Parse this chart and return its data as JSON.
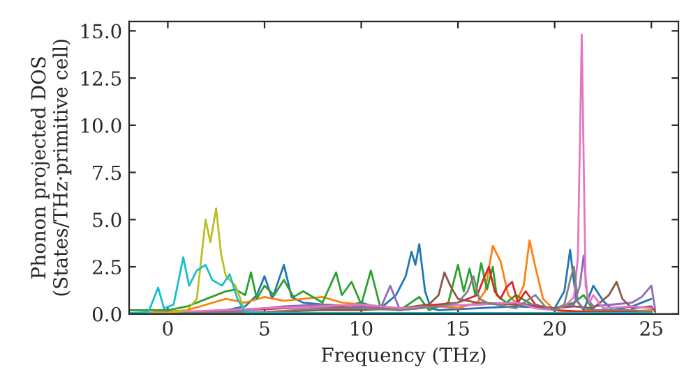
{
  "chart_data": {
    "type": "line",
    "xlabel": "Frequency (THz)",
    "ylabel": "Phonon projected DOS\n(States/THz·primitive cell)",
    "xlim": [
      -2,
      26.4
    ],
    "ylim": [
      0,
      15.5
    ],
    "xticks": [
      0,
      5,
      10,
      15,
      20,
      25
    ],
    "yticks": [
      {
        "value": 0,
        "label": "0.0"
      },
      {
        "value": 2.5,
        "label": "2.5"
      },
      {
        "value": 5,
        "label": "5.0"
      },
      {
        "value": 7.5,
        "label": "7.5"
      },
      {
        "value": 10,
        "label": "10.0"
      },
      {
        "value": 12.5,
        "label": "12.5"
      },
      {
        "value": 15,
        "label": "15.0"
      }
    ],
    "grid": false,
    "marker": "none",
    "line_style": "solid",
    "series": [
      {
        "color": "#1f77b4",
        "x": [
          -2,
          2,
          3,
          4,
          4.6,
          5,
          5.4,
          6,
          6.4,
          7,
          8,
          9,
          10,
          11,
          11.8,
          12.3,
          12.6,
          12.8,
          13,
          13.3,
          13.6,
          14,
          16,
          18,
          20,
          20.5,
          20.8,
          21.1,
          21.5,
          22,
          22.5,
          23,
          24,
          25
        ],
        "values": [
          0,
          0.1,
          0.2,
          0.4,
          1.0,
          2.0,
          0.8,
          2.6,
          0.9,
          0.6,
          0.5,
          0.4,
          0.6,
          0.3,
          1.0,
          2.0,
          3.3,
          2.6,
          3.7,
          1.2,
          0.3,
          0.2,
          0.3,
          0.4,
          0.3,
          1.2,
          3.4,
          0.8,
          0.2,
          1.5,
          0.7,
          0.2,
          0.4,
          0.8
        ]
      },
      {
        "color": "#ff7f0e",
        "x": [
          -2,
          1,
          2,
          3,
          4,
          5,
          6,
          7,
          8,
          9,
          10,
          12,
          14,
          15,
          16,
          16.4,
          16.8,
          17.2,
          17.6,
          18,
          18.4,
          18.7,
          19,
          19.4,
          20,
          21,
          22,
          23,
          25
        ],
        "values": [
          0,
          0.2,
          0.5,
          0.8,
          0.6,
          0.9,
          0.7,
          0.8,
          0.9,
          0.6,
          0.5,
          0.3,
          0.4,
          0.3,
          0.6,
          1.2,
          3.6,
          2.8,
          1.0,
          0.6,
          1.5,
          3.9,
          2.5,
          0.8,
          0.2,
          0.1,
          0.2,
          0.1,
          0.2
        ]
      },
      {
        "color": "#2ca02c",
        "x": [
          -2,
          -1,
          0,
          1,
          2,
          3,
          3.5,
          4,
          4.3,
          4.6,
          5,
          5.5,
          6,
          6.5,
          7,
          8,
          8.7,
          9,
          9.5,
          10,
          10.5,
          11,
          12,
          13,
          13.5,
          14,
          14.5,
          15,
          15.3,
          15.6,
          15.9,
          16.2,
          16.5,
          16.8,
          17,
          17.5,
          18,
          19,
          20,
          21,
          21.5,
          22,
          23,
          25
        ],
        "values": [
          0.2,
          0.2,
          0.2,
          0.4,
          0.8,
          1.2,
          1.3,
          1.0,
          2.2,
          0.8,
          1.5,
          1.0,
          1.8,
          0.9,
          1.2,
          0.6,
          2.2,
          1.0,
          1.7,
          0.5,
          2.3,
          0.3,
          0.2,
          0.9,
          0.2,
          0.4,
          0.6,
          2.6,
          1.2,
          2.4,
          1.0,
          2.7,
          1.3,
          2.5,
          1.0,
          0.6,
          1.0,
          0.4,
          0.3,
          0.6,
          1.0,
          0.2,
          0.1,
          0.1
        ]
      },
      {
        "color": "#d62728",
        "x": [
          -2,
          4,
          6,
          8,
          10,
          12,
          14,
          15,
          16,
          16.3,
          16.6,
          16.9,
          17.2,
          17.5,
          17.8,
          18.1,
          18.5,
          19,
          20,
          22,
          25
        ],
        "values": [
          0,
          0.2,
          0.3,
          0.4,
          0.3,
          0.3,
          0.5,
          0.6,
          1.0,
          1.8,
          2.5,
          1.2,
          0.8,
          1.4,
          1.7,
          0.6,
          1.2,
          0.5,
          0.2,
          0.1,
          0.1
        ]
      },
      {
        "color": "#9467bd",
        "x": [
          -2,
          4,
          6,
          8,
          10,
          11,
          11.5,
          12,
          14,
          16,
          18,
          20,
          21,
          21.3,
          21.5,
          21.7,
          22,
          23,
          24,
          24.5,
          25,
          25.2
        ],
        "values": [
          0,
          0.2,
          0.4,
          0.5,
          0.4,
          0.3,
          1.5,
          0.2,
          0.4,
          0.5,
          0.6,
          0.3,
          0.5,
          1.5,
          3.1,
          0.8,
          0.4,
          0.5,
          0.6,
          0.9,
          1.5,
          0.2
        ]
      },
      {
        "color": "#8c564b",
        "x": [
          -2,
          5,
          8,
          10,
          12,
          13.5,
          14,
          14.3,
          14.6,
          15,
          16,
          18,
          20,
          21,
          22,
          22.8,
          23.2,
          23.5,
          24,
          25,
          25.2
        ],
        "values": [
          0,
          0.1,
          0.2,
          0.2,
          0.3,
          0.5,
          1.0,
          2.2,
          1.5,
          0.8,
          0.6,
          0.5,
          0.3,
          0.4,
          0.3,
          1.0,
          1.7,
          0.8,
          0.3,
          0.4,
          0.1
        ]
      },
      {
        "color": "#e377c2",
        "x": [
          -2,
          5,
          8,
          10,
          12,
          14,
          16,
          18,
          19,
          20,
          20.6,
          21,
          21.2,
          21.4,
          21.6,
          21.8,
          22,
          22.5,
          24,
          25
        ],
        "values": [
          0,
          0.3,
          0.4,
          0.5,
          0.3,
          0.4,
          0.5,
          0.6,
          0.3,
          0.2,
          0.5,
          0.9,
          3.0,
          14.8,
          1.5,
          0.6,
          1.0,
          0.3,
          0.4,
          0.3
        ]
      },
      {
        "color": "#7f7f7f",
        "x": [
          -2,
          5,
          8,
          10,
          12,
          14,
          15,
          15.5,
          15.8,
          16.1,
          16.5,
          18,
          18.7,
          19,
          19.5,
          20,
          20.5,
          20.8,
          21,
          21.2,
          21.5,
          22,
          24,
          25
        ],
        "values": [
          0,
          0.1,
          0.3,
          0.3,
          0.2,
          0.4,
          0.6,
          1.2,
          2.0,
          0.8,
          0.6,
          0.3,
          0.8,
          1.0,
          0.4,
          0.2,
          0.5,
          1.8,
          2.5,
          0.6,
          0.3,
          0.2,
          0.2,
          0.1
        ]
      },
      {
        "color": "#bcbd22",
        "x": [
          -2,
          0,
          1,
          1.5,
          1.95,
          2.2,
          2.5,
          2.75,
          3,
          3.5,
          4
        ],
        "values": [
          0,
          0.05,
          0.2,
          0.8,
          5.0,
          3.8,
          5.6,
          3.2,
          2.0,
          1.5,
          0.1
        ]
      },
      {
        "color": "#17becf",
        "x": [
          -2,
          -1,
          -0.5,
          -0.2,
          0.3,
          0.8,
          1.1,
          1.5,
          1.95,
          2.3,
          2.8,
          3.2,
          3.6,
          4,
          5,
          10,
          15,
          20,
          25
        ],
        "values": [
          0.05,
          0.1,
          1.4,
          0.3,
          0.5,
          3.0,
          1.5,
          2.3,
          2.6,
          1.8,
          1.5,
          2.1,
          0.8,
          0.1,
          0.05,
          0.05,
          0.05,
          0.05,
          0.05
        ]
      }
    ]
  }
}
